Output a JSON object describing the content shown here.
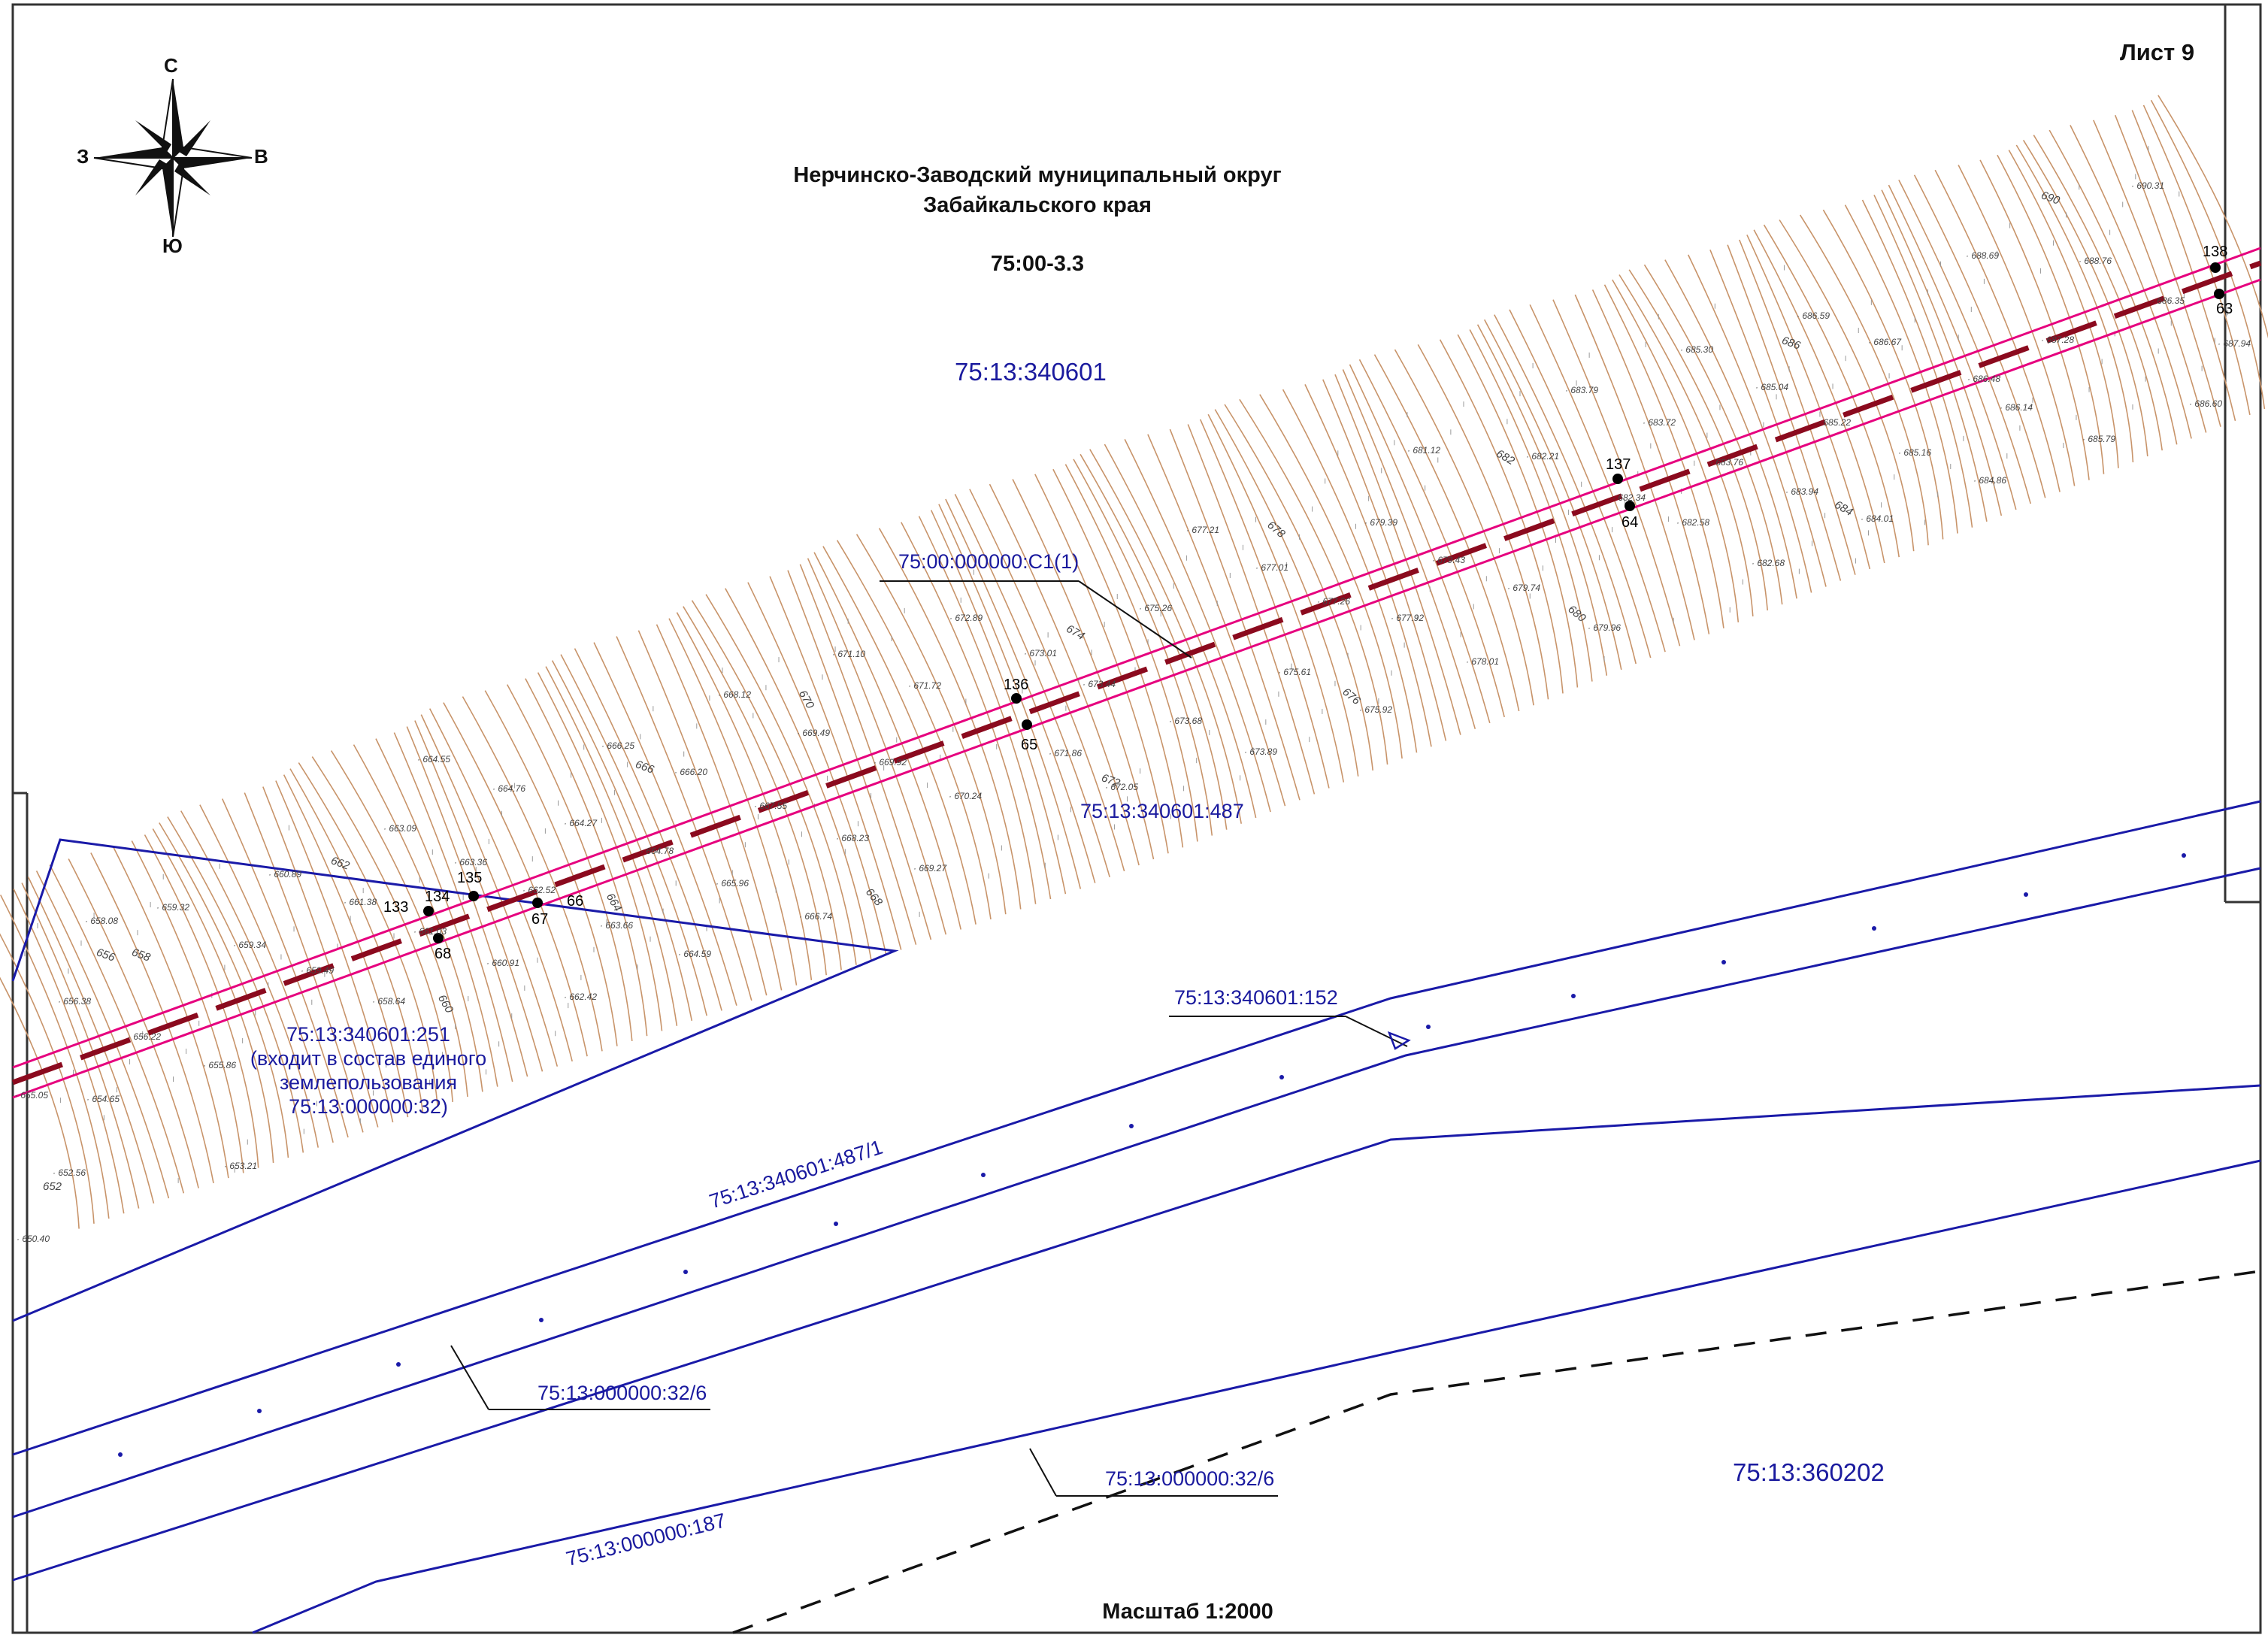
{
  "sheet": {
    "label": "Лист 9"
  },
  "header": {
    "title_line1": "Нерчинско-Заводский муниципальный округ",
    "title_line2": "Забайкальского края",
    "code": "75:00-3.3"
  },
  "scale": {
    "label": "Масштаб 1:2000"
  },
  "compass": {
    "north": "С",
    "south": "Ю",
    "west": "З",
    "east": "В"
  },
  "blocks": {
    "top": "75:13:340601",
    "bottom_right": "75:13:360202"
  },
  "parcels": {
    "object": "75:00:000000:С1(1)",
    "p487": "75:13:340601:487",
    "p152": "75:13:340601:152",
    "p251_line1": "75:13:340601:251",
    "p251_line2": "(входит в состав единого",
    "p251_line3": "землепользования",
    "p251_line4": "75:13:000000:32)",
    "p487_1": "75:13:340601:487/1",
    "p32_6_a": "75:13:000000:32/6",
    "p32_6_b": "75:13:000000:32/6",
    "p187": "75:13:000000:187"
  },
  "points": {
    "p133": "133",
    "p134": "134",
    "p135": "135",
    "p66": "66",
    "p67": "67",
    "p68": "68",
    "p136": "136",
    "p65": "65",
    "p137": "137",
    "p64": "64",
    "p138": "138",
    "p63": "63"
  },
  "contours": [
    "652",
    "656",
    "658",
    "660",
    "662",
    "664",
    "666",
    "668",
    "670",
    "672",
    "674",
    "676",
    "678",
    "680",
    "682",
    "684",
    "686",
    "690"
  ],
  "elevations": {
    "e1": "690.31",
    "e2": "688.69",
    "e3": "688.76",
    "e4": "686.59",
    "e5": "686.67",
    "e6": "685.30",
    "e7": "685.04",
    "e8": "683.79",
    "e9": "683.72",
    "e10": "686.14",
    "e11": "685.79",
    "e12": "685.16",
    "e13": "684.86",
    "e14": "681.12",
    "e15": "682.21",
    "e16": "682.58",
    "e17": "683.94",
    "e18": "684.01",
    "e19": "682.68",
    "e20": "677.21",
    "e21": "679.39",
    "e22": "677.01",
    "e23": "679.43",
    "e24": "679.74",
    "e25": "679.96",
    "e26": "677.26",
    "e27": "677.92",
    "e28": "678.01",
    "e29": "675.26",
    "e30": "672.89",
    "e31": "673.01",
    "e32": "675.61",
    "e33": "675.92",
    "e34": "671.10",
    "e35": "671.72",
    "e36": "673.44",
    "e37": "673.68",
    "e38": "673.89",
    "e39": "668.12",
    "e40": "669.49",
    "e41": "671.86",
    "e42": "672.05",
    "e43": "664.55",
    "e44": "666.25",
    "e45": "666.20",
    "e46": "669.92",
    "e47": "670.24",
    "e48": "664.76",
    "e49": "667.55",
    "e50": "668.23",
    "e51": "663.09",
    "e52": "664.27",
    "e53": "664.78",
    "e54": "669.27",
    "e55": "665.96",
    "e56": "663.36",
    "e57": "666.74",
    "e58": "660.89",
    "e59": "661.38",
    "e60": "662.52",
    "e61": "663.66",
    "e62": "664.59",
    "e63": "659.32",
    "e64": "661.03",
    "e65": "658.08",
    "e66": "659.34",
    "e67": "660.91",
    "e68": "659.49",
    "e69": "662.42",
    "e70": "658.64",
    "e71": "656.38",
    "e72": "656.22",
    "e73": "655.86",
    "e74": "654.65",
    "e75": "653.21",
    "e76": "652.56",
    "e77": "650.40",
    "e78": "687.94",
    "e79": "686.60",
    "e80": "687.28",
    "e81": "686.48",
    "e82": "685.22",
    "e83": "683.76",
    "e84": "682.34",
    "e85": "686.35",
    "e86": "655.05"
  },
  "colors": {
    "road_boundary": "#1a1aa8",
    "object_line": "#e6007e",
    "axis_dashed": "#8b0a1e",
    "contour": "#c8946a",
    "dashed_black": "#111111"
  }
}
